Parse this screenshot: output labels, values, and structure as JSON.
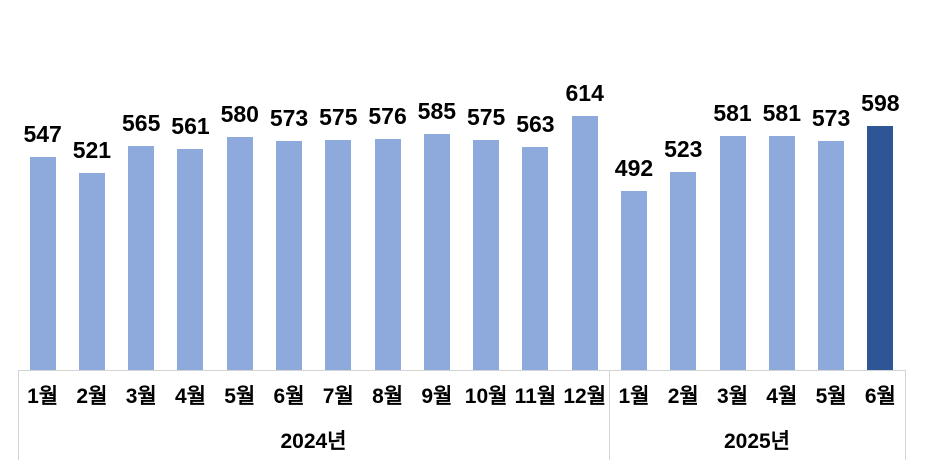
{
  "chart_data": {
    "type": "bar",
    "title": "",
    "legend": "none",
    "data_labels": true,
    "orientation": "vertical",
    "colors": {
      "bar": "#8EA9DB",
      "highlight_bar": "#2E5596",
      "label_text": "#000000",
      "axis_line": "#D4D4D4"
    },
    "value_axis": {
      "min": 200,
      "visible": false
    },
    "groups": [
      {
        "label": "2024년",
        "categories": [
          "1월",
          "2월",
          "3월",
          "4월",
          "5월",
          "6월",
          "7월",
          "8월",
          "9월",
          "10월",
          "11월",
          "12월"
        ],
        "values": [
          547,
          521,
          565,
          561,
          580,
          573,
          575,
          576,
          585,
          575,
          563,
          614
        ]
      },
      {
        "label": "2025년",
        "categories": [
          "1월",
          "2월",
          "3월",
          "4월",
          "5월",
          "6월"
        ],
        "values": [
          492,
          523,
          581,
          581,
          573,
          598
        ]
      }
    ],
    "highlight": {
      "group_index": 1,
      "category": "6월",
      "value": 598
    }
  }
}
